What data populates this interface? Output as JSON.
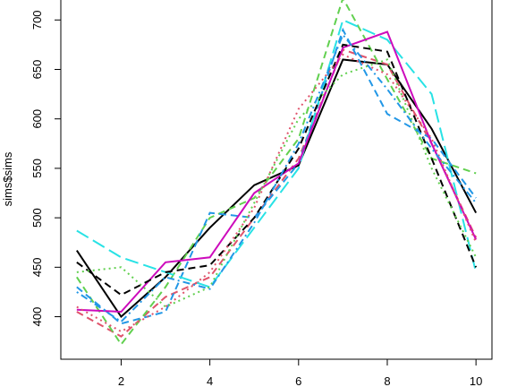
{
  "chart_data": {
    "type": "line",
    "y_label": "sims$sims",
    "x": [
      1,
      2,
      3,
      4,
      5,
      6,
      7,
      8,
      9,
      10
    ],
    "xlim": [
      0.64,
      10.36
    ],
    "xticks": [
      2,
      4,
      6,
      8,
      10
    ],
    "ylim": [
      357,
      722
    ],
    "yticks": [
      400,
      450,
      500,
      550,
      600,
      650,
      700
    ],
    "series": [
      {
        "color": "#000000",
        "linetype": "solid",
        "values": [
          467,
          400,
          440,
          490,
          533,
          553,
          660,
          655,
          590,
          505
        ]
      },
      {
        "color": "#DF536B",
        "linetype": "dashed",
        "values": [
          405,
          380,
          420,
          440,
          500,
          560,
          670,
          655,
          575,
          480
        ]
      },
      {
        "color": "#61D04F",
        "linetype": "dashed",
        "values": [
          440,
          372,
          430,
          500,
          520,
          580,
          722,
          640,
          560,
          545
        ]
      },
      {
        "color": "#2297E6",
        "linetype": "dashed",
        "values": [
          430,
          393,
          405,
          505,
          500,
          555,
          690,
          605,
          580,
          520
        ]
      },
      {
        "color": "#28E2E5",
        "linetype": "longdash",
        "values": [
          487,
          460,
          445,
          430,
          490,
          550,
          700,
          680,
          625,
          445
        ]
      },
      {
        "color": "#CD0BBC",
        "linetype": "solid",
        "values": [
          407,
          405,
          455,
          460,
          525,
          555,
          672,
          688,
          575,
          478
        ]
      },
      {
        "color": "#000000",
        "linetype": "dashed",
        "values": [
          455,
          422,
          445,
          452,
          500,
          570,
          675,
          668,
          560,
          450
        ]
      },
      {
        "color": "#DF536B",
        "linetype": "dotted",
        "values": [
          410,
          385,
          410,
          445,
          510,
          610,
          665,
          645,
          580,
          475
        ]
      },
      {
        "color": "#61D04F",
        "linetype": "dotted",
        "values": [
          445,
          450,
          410,
          430,
          515,
          600,
          645,
          660,
          550,
          460
        ]
      },
      {
        "color": "#2297E6",
        "linetype": "dotdash",
        "values": [
          425,
          395,
          440,
          428,
          495,
          575,
          685,
          630,
          570,
          515
        ]
      }
    ]
  }
}
